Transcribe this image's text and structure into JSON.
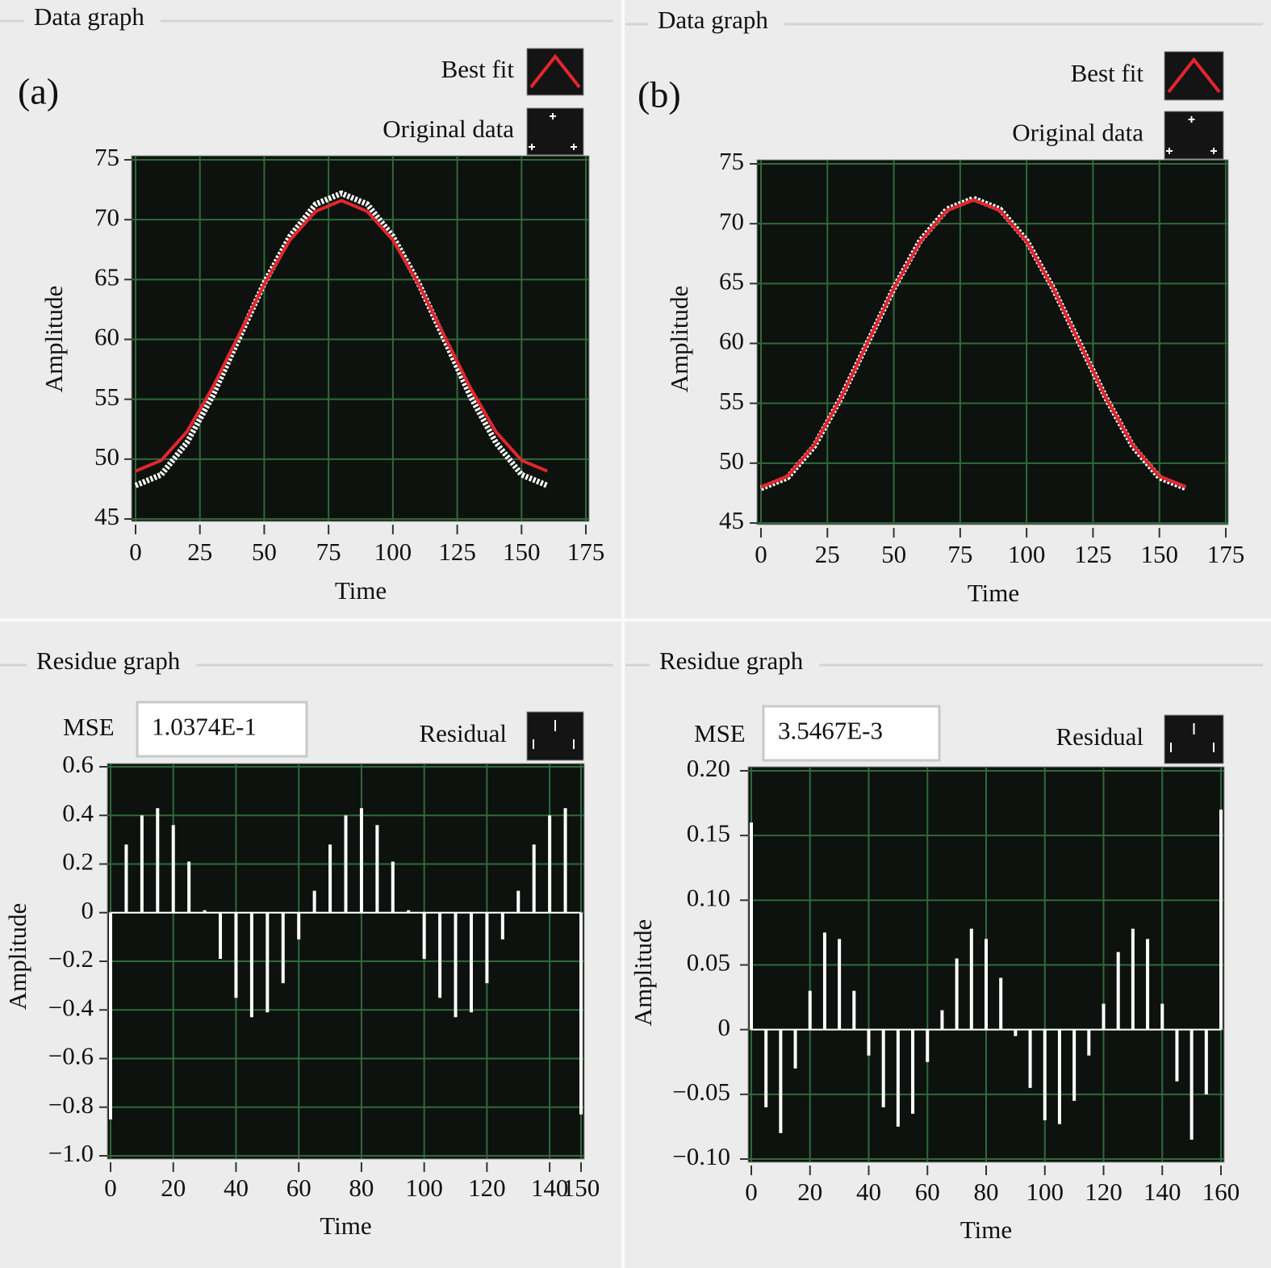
{
  "chart_data": [
    {
      "type": "line",
      "panel_title": "Data graph",
      "panel_label": "(a)",
      "x_label": "Time",
      "y_label": "Amplitude",
      "x": [
        0,
        10,
        20,
        30,
        40,
        50,
        60,
        70,
        80,
        90,
        100,
        110,
        120,
        130,
        140,
        150,
        160
      ],
      "series": [
        {
          "name": "Best fit",
          "color": "#e3262e",
          "style": "line",
          "values": [
            49.0,
            49.9,
            52.3,
            56.0,
            60.3,
            64.6,
            68.3,
            70.7,
            71.6,
            70.7,
            68.3,
            64.6,
            60.3,
            56.0,
            52.3,
            49.9,
            49.0
          ]
        },
        {
          "name": "Original data",
          "color": "#ffffff",
          "style": "points",
          "values": [
            47.8,
            48.7,
            51.4,
            55.3,
            60.0,
            64.7,
            68.6,
            71.3,
            72.2,
            71.3,
            68.6,
            64.7,
            60.0,
            55.3,
            51.4,
            48.7,
            47.8
          ]
        }
      ],
      "xlim": [
        0,
        175
      ],
      "ylim": [
        45,
        75
      ],
      "xticks": [
        0,
        25,
        50,
        75,
        100,
        125,
        150,
        175
      ],
      "yticks": [
        45,
        50,
        55,
        60,
        65,
        70,
        75
      ],
      "grid": true,
      "grid_color": "#2f6a3b"
    },
    {
      "type": "line",
      "panel_title": "Data graph",
      "panel_label": "(b)",
      "x_label": "Time",
      "y_label": "Amplitude",
      "x": [
        0,
        10,
        20,
        30,
        40,
        50,
        60,
        70,
        80,
        90,
        100,
        110,
        120,
        130,
        140,
        150,
        160
      ],
      "series": [
        {
          "name": "Best fit",
          "color": "#e3262e",
          "style": "line",
          "values": [
            48.0,
            48.9,
            51.5,
            55.4,
            60.0,
            64.6,
            68.5,
            71.1,
            72.0,
            71.1,
            68.5,
            64.6,
            60.0,
            55.4,
            51.5,
            48.9,
            48.0
          ]
        },
        {
          "name": "Original data",
          "color": "#ffffff",
          "style": "points",
          "values": [
            47.9,
            48.8,
            51.4,
            55.4,
            60.0,
            64.6,
            68.6,
            71.2,
            72.1,
            71.2,
            68.6,
            64.6,
            60.0,
            55.4,
            51.4,
            48.8,
            47.9
          ]
        }
      ],
      "xlim": [
        0,
        175
      ],
      "ylim": [
        45,
        75
      ],
      "xticks": [
        0,
        25,
        50,
        75,
        100,
        125,
        150,
        175
      ],
      "yticks": [
        45,
        50,
        55,
        60,
        65,
        70,
        75
      ],
      "grid": true,
      "grid_color": "#2f6a3b"
    },
    {
      "type": "bar",
      "panel_title": "Residue graph",
      "mse_label": "MSE",
      "mse_value": "1.0374E-1",
      "x_label": "Time",
      "y_label": "Amplitude",
      "x": [
        0,
        5,
        10,
        15,
        20,
        25,
        30,
        35,
        40,
        45,
        50,
        55,
        60,
        65,
        70,
        75,
        80,
        85,
        90,
        95,
        100,
        105,
        110,
        115,
        120,
        125,
        130,
        135,
        140,
        145,
        150
      ],
      "series": [
        {
          "name": "Residual",
          "color": "#ffffff",
          "style": "bars",
          "values": [
            -0.85,
            0.28,
            0.4,
            0.43,
            0.36,
            0.21,
            0.01,
            -0.19,
            -0.35,
            -0.43,
            -0.41,
            -0.29,
            -0.11,
            0.09,
            0.28,
            0.4,
            0.43,
            0.36,
            0.21,
            0.01,
            -0.19,
            -0.35,
            -0.43,
            -0.41,
            -0.29,
            -0.11,
            0.09,
            0.28,
            0.4,
            0.43,
            -0.83
          ]
        }
      ],
      "xlim": [
        0,
        150
      ],
      "ylim": [
        -1.0,
        0.6
      ],
      "xticks": [
        0,
        20,
        40,
        60,
        80,
        100,
        120,
        140,
        150
      ],
      "yticks": [
        {
          "value": -1.0,
          "label": "−1.0"
        },
        {
          "value": -0.8,
          "label": "−0.8"
        },
        {
          "value": -0.6,
          "label": "−0.6"
        },
        {
          "value": -0.4,
          "label": "−0.4"
        },
        {
          "value": -0.2,
          "label": "−0.2"
        },
        0,
        0.2,
        0.4,
        0.6
      ],
      "grid": true,
      "grid_color": "#2f6a3b"
    },
    {
      "type": "bar",
      "panel_title": "Residue graph",
      "mse_label": "MSE",
      "mse_value": "3.5467E-3",
      "x_label": "Time",
      "y_label": "Amplitude",
      "x": [
        0,
        5,
        10,
        15,
        20,
        25,
        30,
        35,
        40,
        45,
        50,
        55,
        60,
        65,
        70,
        75,
        80,
        85,
        90,
        95,
        100,
        105,
        110,
        115,
        120,
        125,
        130,
        135,
        140,
        145,
        150,
        155,
        160
      ],
      "series": [
        {
          "name": "Residual",
          "color": "#ffffff",
          "style": "bars",
          "values": [
            0.16,
            -0.06,
            -0.08,
            -0.03,
            0.03,
            0.075,
            0.07,
            0.03,
            -0.02,
            -0.06,
            -0.075,
            -0.065,
            -0.025,
            0.015,
            0.055,
            0.078,
            0.07,
            0.04,
            -0.005,
            -0.045,
            -0.07,
            -0.073,
            -0.055,
            -0.02,
            0.02,
            0.06,
            0.078,
            0.07,
            0.02,
            -0.04,
            -0.085,
            -0.05,
            0.17
          ]
        }
      ],
      "xlim": [
        0,
        160
      ],
      "ylim": [
        -0.1,
        0.2
      ],
      "xticks": [
        0,
        20,
        40,
        60,
        80,
        100,
        120,
        140,
        160
      ],
      "yticks": [
        {
          "value": -0.1,
          "label": "−0.10"
        },
        {
          "value": -0.05,
          "label": "−0.05"
        },
        0,
        0.05,
        {
          "value": 0.1,
          "label": "0.10"
        },
        0.15,
        {
          "value": 0.2,
          "label": "0.20"
        }
      ],
      "grid": true,
      "grid_color": "#2f6a3b"
    }
  ]
}
